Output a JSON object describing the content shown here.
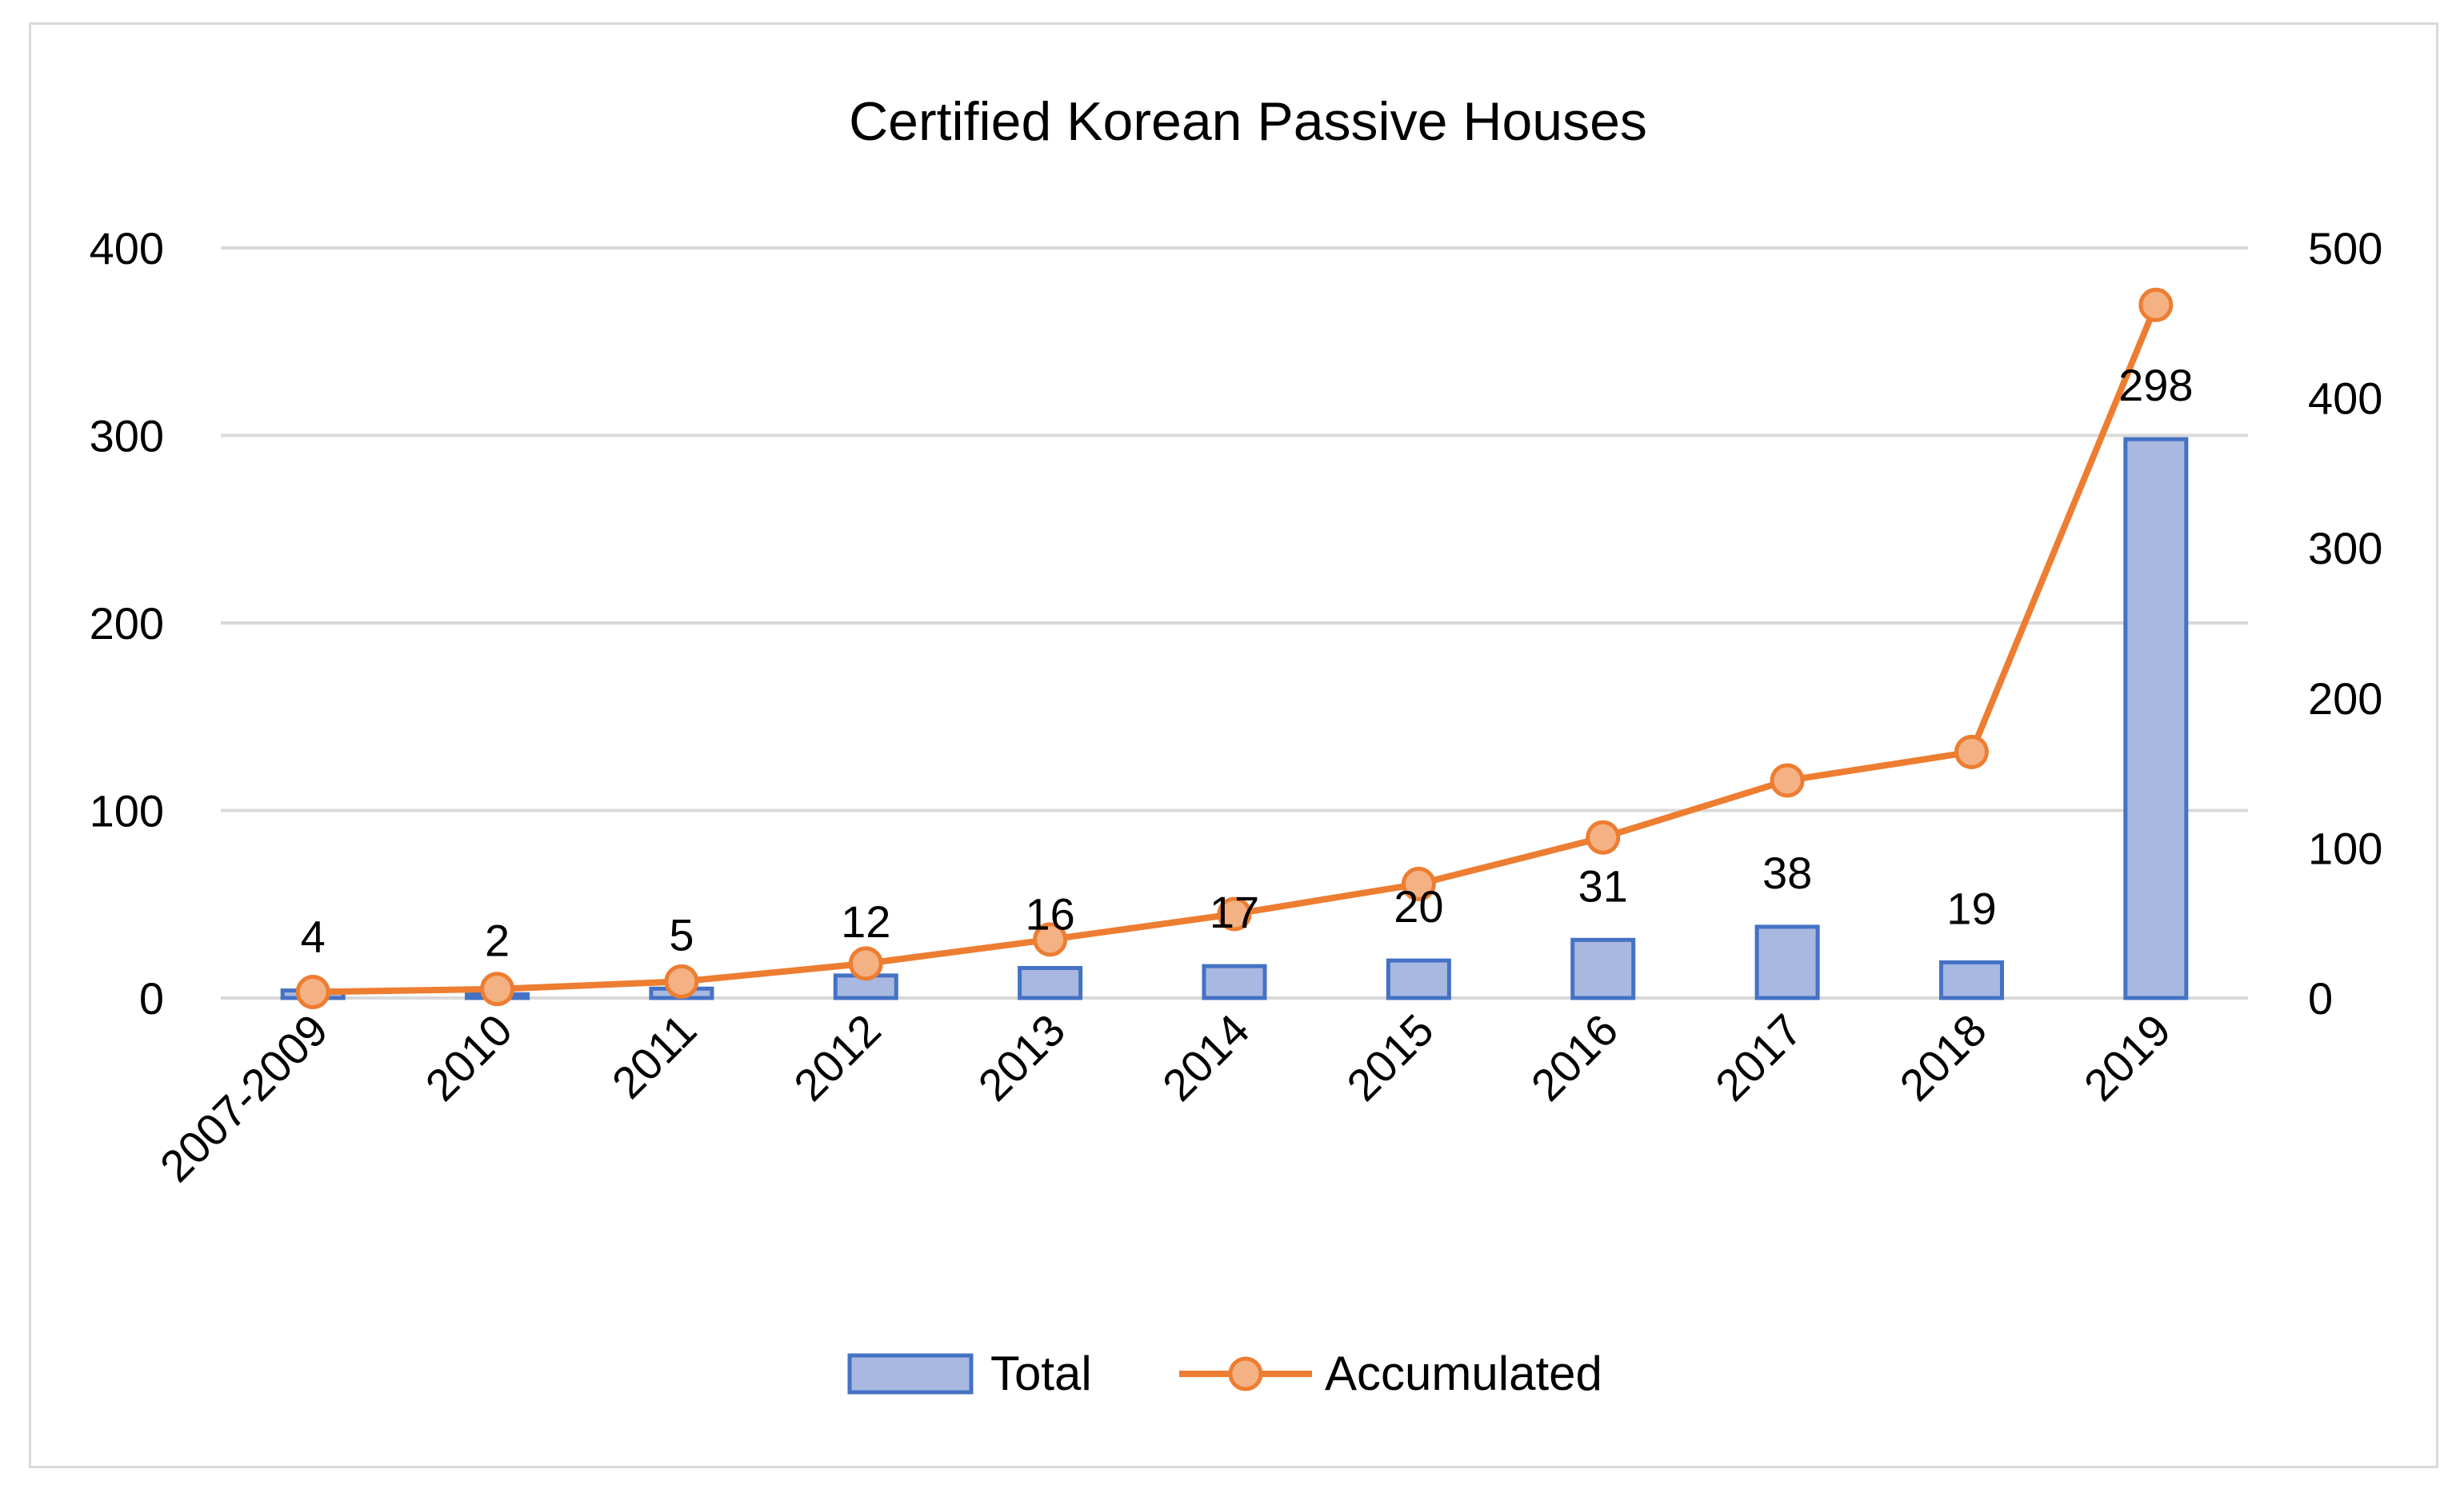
{
  "chart_data": {
    "type": "bar",
    "title": "Certified Korean Passive Houses",
    "categories": [
      "2007-2009",
      "2010",
      "2011",
      "2012",
      "2013",
      "2014",
      "2015",
      "2016",
      "2017",
      "2018",
      "2019"
    ],
    "series": [
      {
        "name": "Total",
        "type": "bar",
        "axis": "left",
        "color": "#4472c4",
        "fill": "#a9b8e0",
        "values": [
          4,
          2,
          5,
          12,
          16,
          17,
          20,
          31,
          38,
          19,
          298
        ],
        "data_labels": [
          "4",
          "2",
          "5",
          "12",
          "16",
          "17",
          "20",
          "31",
          "38",
          "19",
          "298"
        ]
      },
      {
        "name": "Accumulated",
        "type": "line",
        "axis": "right",
        "color": "#ed7d31",
        "marker_fill": "#f4b183",
        "values": [
          4,
          6,
          11,
          23,
          39,
          56,
          76,
          107,
          145,
          164,
          462
        ]
      }
    ],
    "y_left": {
      "min": 0,
      "max": 400,
      "ticks": [
        "0",
        "100",
        "200",
        "300",
        "400"
      ]
    },
    "y_right": {
      "min": 0,
      "max": 500,
      "ticks": [
        "0",
        "100",
        "200",
        "300",
        "400",
        "500"
      ]
    },
    "grid": true,
    "legend_position": "bottom",
    "gridline_color": "#d9d9d9"
  }
}
